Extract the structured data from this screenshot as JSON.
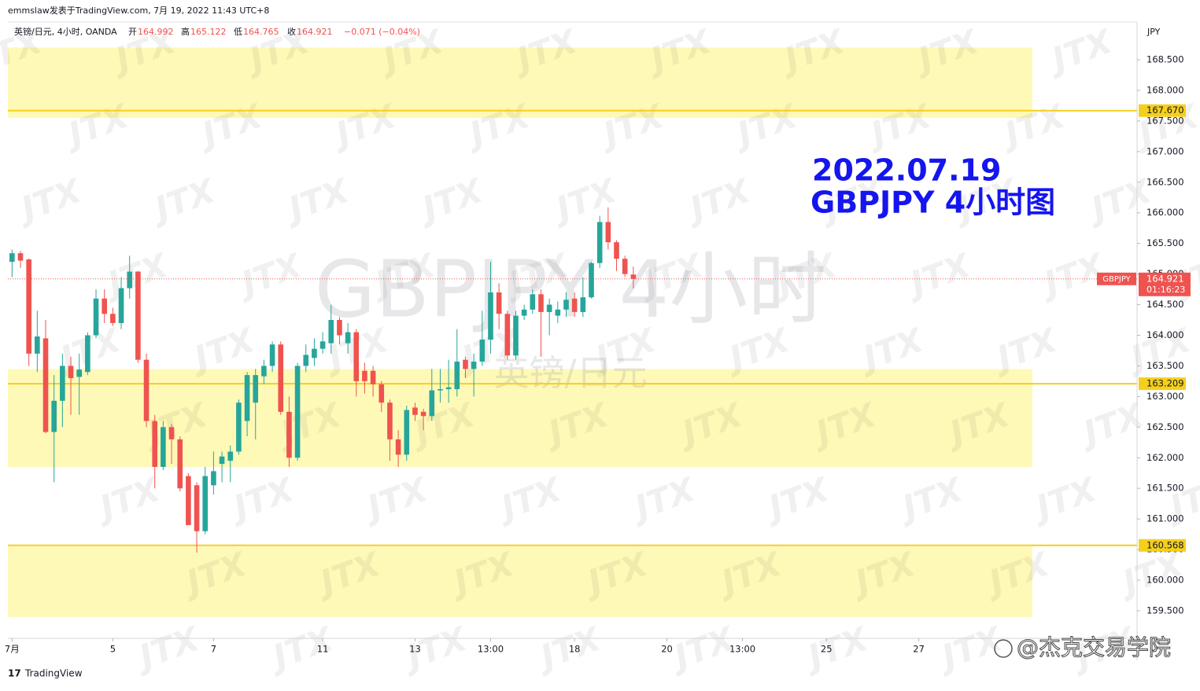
{
  "chart_data": {
    "type": "candlestick",
    "header": "emmslaw发表于TradingView.com, 7月 19, 2022 11:43 UTC+8",
    "legend": {
      "symbol": "英镑/日元, 4小时, OANDA",
      "fields": [
        {
          "label": "开",
          "value": "164.992"
        },
        {
          "label": "高",
          "value": "165.122"
        },
        {
          "label": "低",
          "value": "164.765"
        },
        {
          "label": "收",
          "value": "164.921"
        }
      ],
      "change": "−0.071 (−0.04%)"
    },
    "annotation": [
      "2022.07.19",
      "GBPJPY 4小时图"
    ],
    "watermark": [
      "GBPJPY 4小时",
      "英镑/日元"
    ],
    "brand_mark": "JTX",
    "y_unit": "JPY",
    "footer": "TradingView",
    "credit": "@杰克交易学院",
    "up_color": "#26a69a",
    "down_color": "#ef5350",
    "level_color": "#f5cf1d",
    "zone_color": "#fff9b8",
    "series": [
      {
        "name": "GBPJPY",
        "open": [
          165.2,
          165.34,
          165.24,
          163.7,
          163.95,
          162.42,
          162.93,
          163.5,
          163.32,
          163.4,
          164.0,
          164.6,
          164.35,
          164.2,
          164.77,
          165.04,
          163.6,
          162.6,
          161.85,
          162.5,
          162.3,
          161.7,
          161.55,
          160.8,
          161.55,
          161.9,
          161.95,
          162.1,
          162.6,
          162.9,
          163.33,
          163.5,
          163.85,
          162.75,
          162.0,
          163.5,
          163.63,
          163.78,
          163.87,
          164.25,
          163.87,
          164.05,
          163.42,
          163.42,
          163.2,
          162.9,
          162.3,
          162.05,
          162.82,
          162.75,
          162.68,
          163.1,
          163.12,
          163.12,
          163.6,
          163.45,
          163.57,
          163.93,
          164.7,
          164.35,
          163.67,
          164.32,
          164.42,
          164.67,
          164.38,
          164.32,
          164.42,
          164.6,
          164.38,
          164.62,
          165.18,
          165.85,
          165.52,
          165.25,
          164.992
        ],
        "high": [
          165.4,
          165.38,
          165.25,
          164.4,
          164.25,
          163.35,
          163.7,
          163.65,
          163.7,
          164.05,
          164.75,
          164.75,
          164.45,
          164.95,
          165.3,
          165.05,
          163.7,
          162.7,
          162.6,
          162.55,
          162.35,
          161.75,
          161.6,
          161.85,
          162.1,
          162.1,
          162.2,
          162.95,
          163.4,
          163.45,
          163.6,
          163.9,
          163.9,
          163.0,
          163.55,
          163.85,
          163.95,
          164.05,
          164.5,
          164.3,
          164.2,
          164.1,
          163.55,
          163.5,
          163.25,
          162.95,
          162.45,
          162.85,
          162.9,
          162.8,
          163.45,
          163.45,
          163.6,
          164.1,
          163.65,
          163.7,
          164.4,
          165.2,
          164.85,
          164.4,
          164.4,
          164.5,
          164.75,
          164.75,
          164.6,
          164.55,
          164.7,
          164.7,
          164.95,
          165.2,
          165.95,
          166.09,
          165.55,
          165.3,
          165.122
        ],
        "low": [
          164.95,
          165.1,
          163.5,
          163.4,
          162.4,
          161.6,
          162.5,
          162.7,
          162.7,
          163.35,
          163.95,
          164.2,
          164.15,
          164.1,
          164.6,
          163.55,
          162.5,
          161.5,
          161.8,
          161.9,
          161.45,
          160.9,
          160.45,
          160.75,
          161.4,
          161.6,
          161.6,
          162.05,
          162.35,
          162.3,
          163.2,
          163.4,
          162.7,
          161.85,
          161.95,
          163.4,
          163.5,
          163.7,
          163.7,
          163.85,
          163.7,
          163.0,
          163.05,
          163.0,
          162.75,
          161.95,
          161.85,
          161.95,
          162.6,
          162.45,
          162.6,
          162.9,
          162.9,
          163.0,
          163.3,
          163.0,
          163.5,
          163.7,
          164.1,
          163.6,
          163.6,
          164.25,
          164.35,
          163.65,
          164.0,
          164.2,
          164.3,
          164.3,
          164.3,
          164.6,
          165.1,
          165.4,
          165.05,
          164.95,
          164.765
        ],
        "close": [
          165.34,
          165.22,
          163.7,
          163.98,
          162.42,
          162.93,
          163.5,
          163.3,
          163.44,
          164.0,
          164.6,
          164.35,
          164.2,
          164.77,
          165.04,
          163.6,
          162.6,
          161.85,
          162.5,
          162.3,
          161.5,
          160.9,
          160.8,
          161.7,
          161.78,
          162.02,
          162.1,
          162.9,
          163.35,
          163.35,
          163.5,
          163.85,
          162.75,
          162.0,
          163.5,
          163.68,
          163.78,
          163.9,
          164.25,
          164.0,
          164.05,
          163.25,
          163.25,
          163.2,
          162.9,
          162.3,
          162.05,
          162.78,
          162.7,
          162.68,
          163.1,
          163.12,
          163.15,
          163.57,
          163.45,
          163.57,
          163.93,
          164.7,
          164.35,
          163.67,
          164.32,
          164.42,
          164.67,
          164.38,
          164.5,
          164.42,
          164.58,
          164.38,
          164.62,
          165.18,
          165.85,
          165.52,
          165.25,
          165.0,
          164.921
        ]
      }
    ],
    "last": {
      "value": 164.921,
      "label": "164.921",
      "countdown": "01:16:23",
      "symbol": "GBPJPY"
    },
    "levels": [
      {
        "value": 167.67,
        "label": "167.670"
      },
      {
        "value": 163.209,
        "label": "163.209"
      },
      {
        "value": 160.568,
        "label": "160.568"
      }
    ],
    "zones": [
      [
        168.7,
        167.55
      ],
      [
        163.45,
        161.85
      ],
      [
        160.55,
        159.4
      ]
    ],
    "xlim": [
      -0.5,
      134
    ],
    "xticks": [
      {
        "value": 0,
        "label": "7月"
      },
      {
        "value": 12,
        "label": "5"
      },
      {
        "value": 24,
        "label": "7"
      },
      {
        "value": 37,
        "label": "11"
      },
      {
        "value": 48,
        "label": "13"
      },
      {
        "value": 57,
        "label": "13:00"
      },
      {
        "value": 67,
        "label": "18"
      },
      {
        "value": 78,
        "label": "20"
      },
      {
        "value": 87,
        "label": "13:00"
      },
      {
        "value": 97,
        "label": "25"
      },
      {
        "value": 108,
        "label": "27"
      }
    ],
    "ylim": [
      159.05,
      169.117
    ],
    "yticks": [
      {
        "value": 168.5,
        "label": "168.500"
      },
      {
        "value": 168,
        "label": "168.000"
      },
      {
        "value": 167.5,
        "label": "167.500"
      },
      {
        "value": 167,
        "label": "167.000"
      },
      {
        "value": 166.5,
        "label": "166.500"
      },
      {
        "value": 166,
        "label": "166.000"
      },
      {
        "value": 165.5,
        "label": "165.500"
      },
      {
        "value": 165,
        "label": "165.000"
      },
      {
        "value": 164.5,
        "label": "164.500"
      },
      {
        "value": 164,
        "label": "164.000"
      },
      {
        "value": 163.5,
        "label": "163.500"
      },
      {
        "value": 163,
        "label": "163.000"
      },
      {
        "value": 162.5,
        "label": "162.500"
      },
      {
        "value": 162,
        "label": "162.000"
      },
      {
        "value": 161.5,
        "label": "161.500"
      },
      {
        "value": 161,
        "label": "161.000"
      },
      {
        "value": 160.5,
        "label": "160.500"
      },
      {
        "value": 160,
        "label": "160.000"
      },
      {
        "value": 159.5,
        "label": "159.500"
      }
    ]
  }
}
